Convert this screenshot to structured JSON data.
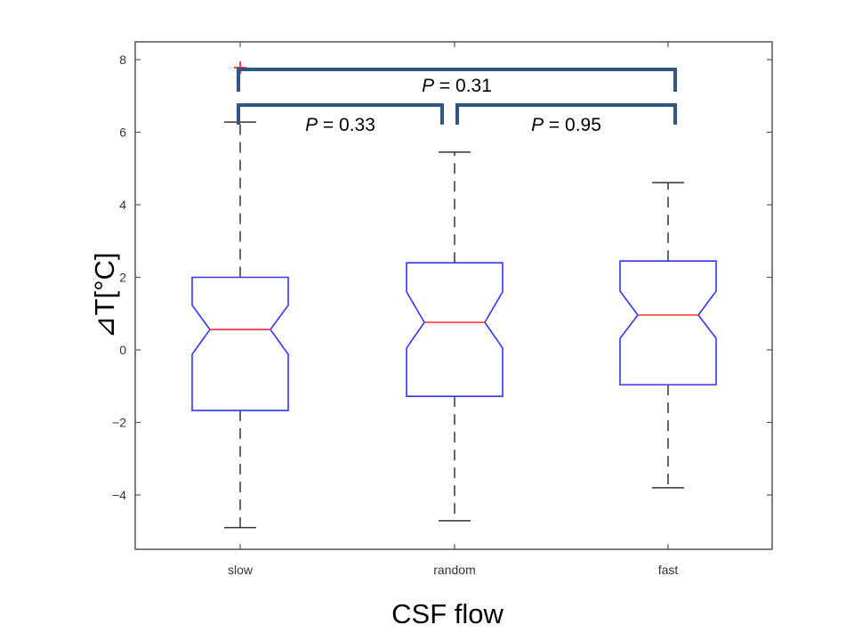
{
  "chart_data": {
    "type": "boxplot",
    "title": "",
    "xlabel": "CSF flow",
    "ylabel": "⊿T[°C]",
    "ylim": [
      -5.2,
      8.5
    ],
    "yticks": [
      -4,
      -2,
      0,
      2,
      4,
      6,
      8
    ],
    "ytick_labels": [
      "−4",
      "−2",
      "0",
      "2",
      "4",
      "6",
      "8"
    ],
    "categories": [
      "slow",
      "random",
      "fast"
    ],
    "boxes": [
      {
        "name": "slow",
        "whisker_low": -4.9,
        "q1": -1.67,
        "median": 0.56,
        "q3": 2.0,
        "whisker_high": 6.28,
        "notch_low": -0.12,
        "notch_high": 1.23,
        "outliers": [
          7.78
        ]
      },
      {
        "name": "random",
        "whisker_low": -4.71,
        "q1": -1.28,
        "median": 0.76,
        "q3": 2.4,
        "whisker_high": 5.45,
        "notch_low": 0.05,
        "notch_high": 1.6,
        "outliers": []
      },
      {
        "name": "fast",
        "whisker_low": -3.8,
        "q1": -0.96,
        "median": 0.96,
        "q3": 2.45,
        "whisker_high": 4.61,
        "notch_low": 0.32,
        "notch_high": 1.62,
        "outliers": []
      }
    ],
    "comparisons": [
      {
        "from": 0,
        "to": 2,
        "p_label": "P",
        "p_value": "= 0.31",
        "level": 2
      },
      {
        "from": 0,
        "to": 1,
        "p_label": "P",
        "p_value": "= 0.33",
        "level": 1
      },
      {
        "from": 1,
        "to": 2,
        "p_label": "P",
        "p_value": "= 0.95",
        "level": 1
      }
    ],
    "grid": false,
    "colors": {
      "box": "#3333ff",
      "median": "#ff3333",
      "whisker": "#333333",
      "bracket": "#2f5782",
      "outlier": "#ff0000"
    }
  }
}
